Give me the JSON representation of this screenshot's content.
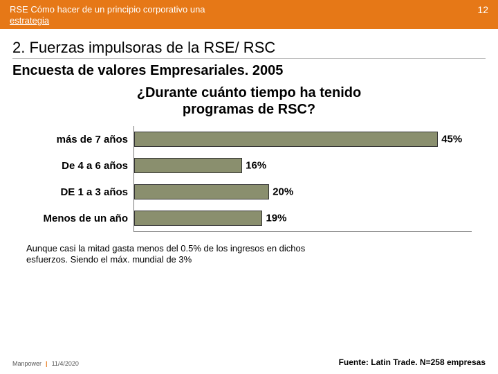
{
  "header": {
    "title_line1": "RSE Cómo hacer de un principio corporativo una",
    "title_line2": "estrategia",
    "page_number": "12",
    "bg_color": "#e67817",
    "text_color": "#ffffff"
  },
  "section": {
    "heading": "2. Fuerzas impulsoras de la RSE/ RSC",
    "subtitle": "Encuesta de valores Empresariales. 2005"
  },
  "chart": {
    "type": "bar-horizontal",
    "title_line1": "¿Durante cuánto tiempo ha tenido",
    "title_line2": "programas de RSC?",
    "categories": [
      "más de 7 años",
      "De 4 a 6 años",
      "DE 1 a 3 años",
      "Menos de un año"
    ],
    "values": [
      45,
      16,
      20,
      19
    ],
    "value_labels": [
      "45%",
      "16%",
      "20%",
      "19%"
    ],
    "bar_color": "#8a8f6e",
    "bar_border": "#333333",
    "axis_color": "#777777",
    "x_max": 50,
    "label_fontsize": 15,
    "title_fontsize": 20,
    "background_color": "#ffffff"
  },
  "footnote": {
    "line1": "Aunque  casi la mitad gasta menos del 0.5% de los ingresos en dichos",
    "line2": "esfuerzos. Siendo el máx. mundial de 3%"
  },
  "footer": {
    "brand": "Manpower",
    "date": "11/4/2020",
    "source": "Fuente: Latin Trade. N=258 empresas"
  }
}
